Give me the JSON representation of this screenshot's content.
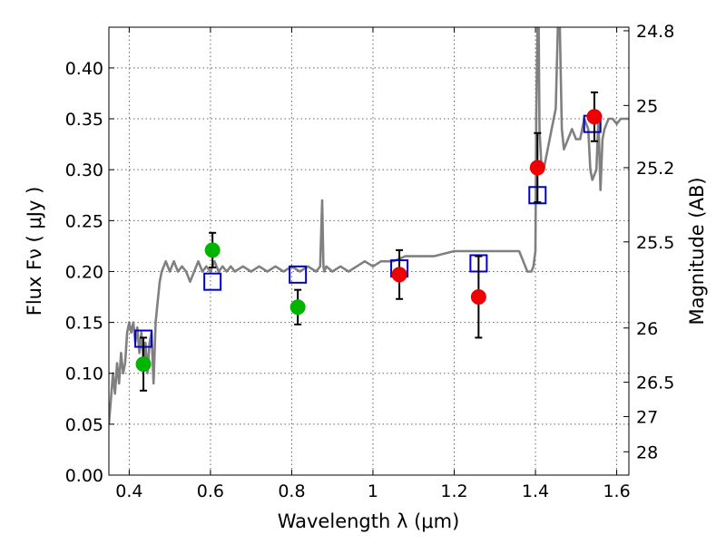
{
  "chart_data": {
    "type": "scatter",
    "xlabel": "Wavelength  λ (μm)",
    "ylabel": "Flux  Fν ( μJy )",
    "y2label": "Magnitude (AB)",
    "xlim": [
      0.35,
      1.63
    ],
    "ylim": [
      0.0,
      0.44
    ],
    "grid": true,
    "x_ticks": [
      0.4,
      0.6,
      0.8,
      1.0,
      1.2,
      1.4,
      1.6
    ],
    "x_tick_labels": [
      "0.4",
      "0.6",
      "0.8",
      "1",
      "1.2",
      "1.4",
      "1.6"
    ],
    "y_ticks": [
      0.0,
      0.05,
      0.1,
      0.15,
      0.2,
      0.25,
      0.3,
      0.35,
      0.4
    ],
    "y_tick_labels": [
      "0.00",
      "0.05",
      "0.10",
      "0.15",
      "0.20",
      "0.25",
      "0.30",
      "0.35",
      "0.40"
    ],
    "y2_ticks": [
      {
        "flux": 0.4365,
        "label": "24.8"
      },
      {
        "flux": 0.3631,
        "label": "25"
      },
      {
        "flux": 0.302,
        "label": "25.2"
      },
      {
        "flux": 0.2291,
        "label": "25.5"
      },
      {
        "flux": 0.1445,
        "label": "26"
      },
      {
        "flux": 0.0912,
        "label": "26.5"
      },
      {
        "flux": 0.0575,
        "label": "27"
      },
      {
        "flux": 0.0229,
        "label": "28"
      }
    ],
    "series": [
      {
        "kind": "line",
        "color": "#808080",
        "x": [
          0.35,
          0.36,
          0.365,
          0.37,
          0.375,
          0.38,
          0.385,
          0.39,
          0.395,
          0.4,
          0.405,
          0.41,
          0.415,
          0.42,
          0.425,
          0.43,
          0.435,
          0.44,
          0.445,
          0.45,
          0.455,
          0.46,
          0.465,
          0.47,
          0.475,
          0.48,
          0.49,
          0.5,
          0.51,
          0.52,
          0.53,
          0.54,
          0.55,
          0.56,
          0.57,
          0.58,
          0.59,
          0.6,
          0.61,
          0.62,
          0.63,
          0.64,
          0.65,
          0.66,
          0.68,
          0.7,
          0.72,
          0.74,
          0.76,
          0.78,
          0.8,
          0.82,
          0.84,
          0.86,
          0.87,
          0.875,
          0.878,
          0.88,
          0.885,
          0.9,
          0.92,
          0.94,
          0.96,
          0.98,
          1.0,
          1.02,
          1.05,
          1.08,
          1.1,
          1.15,
          1.2,
          1.25,
          1.3,
          1.35,
          1.36,
          1.37,
          1.38,
          1.39,
          1.395,
          1.4,
          1.402,
          1.405,
          1.408,
          1.41,
          1.415,
          1.42,
          1.43,
          1.44,
          1.45,
          1.455,
          1.46,
          1.465,
          1.47,
          1.48,
          1.49,
          1.5,
          1.51,
          1.52,
          1.53,
          1.535,
          1.54,
          1.55,
          1.555,
          1.56,
          1.565,
          1.57,
          1.58,
          1.59,
          1.6,
          1.61,
          1.62,
          1.63
        ],
        "y": [
          0.05,
          0.1,
          0.08,
          0.11,
          0.09,
          0.12,
          0.1,
          0.11,
          0.14,
          0.15,
          0.14,
          0.15,
          0.13,
          0.145,
          0.12,
          0.14,
          0.11,
          0.13,
          0.1,
          0.13,
          0.14,
          0.09,
          0.15,
          0.17,
          0.19,
          0.2,
          0.21,
          0.2,
          0.21,
          0.2,
          0.205,
          0.2,
          0.19,
          0.2,
          0.21,
          0.2,
          0.205,
          0.2,
          0.21,
          0.2,
          0.205,
          0.2,
          0.205,
          0.2,
          0.205,
          0.2,
          0.205,
          0.2,
          0.205,
          0.2,
          0.205,
          0.2,
          0.205,
          0.2,
          0.205,
          0.27,
          0.205,
          0.2,
          0.205,
          0.2,
          0.205,
          0.2,
          0.205,
          0.21,
          0.205,
          0.21,
          0.21,
          0.215,
          0.215,
          0.215,
          0.22,
          0.22,
          0.22,
          0.22,
          0.22,
          0.21,
          0.2,
          0.2,
          0.205,
          0.22,
          0.35,
          0.44,
          0.44,
          0.34,
          0.3,
          0.3,
          0.32,
          0.34,
          0.36,
          0.44,
          0.44,
          0.34,
          0.32,
          0.33,
          0.34,
          0.33,
          0.33,
          0.35,
          0.34,
          0.3,
          0.29,
          0.3,
          0.35,
          0.28,
          0.33,
          0.34,
          0.35,
          0.35,
          0.345,
          0.35,
          0.35,
          0.35
        ]
      },
      {
        "kind": "open-square",
        "color": "#0000cc",
        "x": [
          0.435,
          0.605,
          0.815,
          1.065,
          1.26,
          1.405,
          1.54
        ],
        "y": [
          0.134,
          0.19,
          0.197,
          0.203,
          0.208,
          0.275,
          0.345
        ]
      },
      {
        "kind": "point-errorbar",
        "color": "#00b400",
        "x": [
          0.435,
          0.605,
          0.815
        ],
        "y": [
          0.109,
          0.221,
          0.165
        ],
        "yerr": [
          0.026,
          0.017,
          0.017
        ]
      },
      {
        "kind": "point-errorbar",
        "color": "#ee0000",
        "x": [
          1.065,
          1.26,
          1.405,
          1.545
        ],
        "y": [
          0.197,
          0.175,
          0.302,
          0.352
        ],
        "yerr": [
          0.024,
          0.04,
          0.034,
          0.024
        ]
      }
    ]
  }
}
